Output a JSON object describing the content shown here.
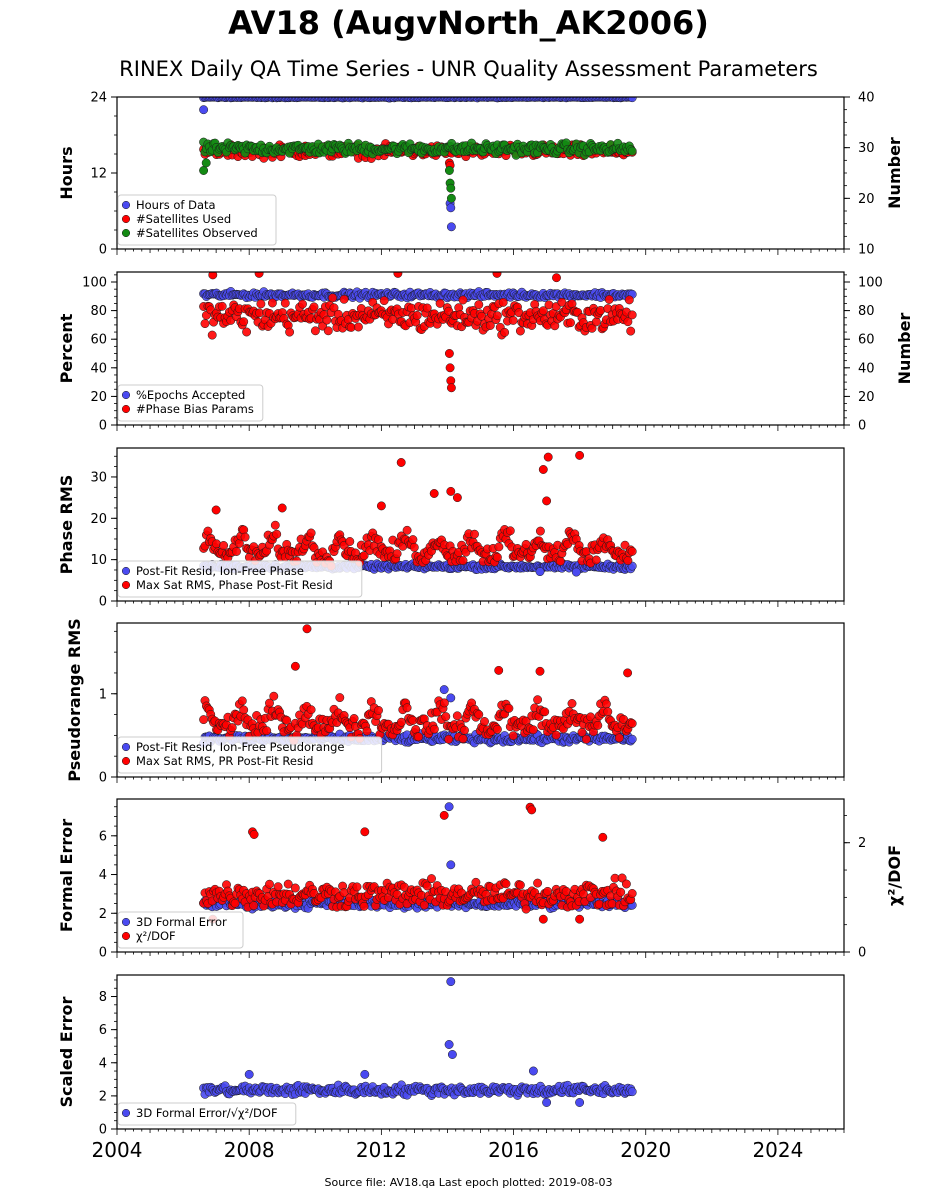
{
  "page": {
    "title": "AV18 (AugvNorth_AK2006)",
    "subtitle": "RINEX Daily QA Time Series - UNR Quality Assessment Parameters",
    "footer": "Source file: AV18.qa Last epoch plotted: 2019-08-03"
  },
  "colors": {
    "blue": "#4a4af0",
    "red": "#ff0000",
    "green": "#138a13",
    "edge": "#1a1a1a"
  },
  "chart_data": [
    {
      "id": "hours",
      "type": "scatter",
      "ylabel": "Hours",
      "ylabel_right": "Number",
      "ylim": [
        0,
        24
      ],
      "ylim_right": [
        10,
        40
      ],
      "yticks": [
        0,
        12,
        24
      ],
      "yticks_right": [
        10,
        20,
        30,
        40
      ],
      "xlim": [
        2004,
        2026
      ],
      "legend_position": "lower-left",
      "series": [
        {
          "name": "Hours of Data",
          "color": "blue",
          "axis": "left",
          "base": 24,
          "noise": 0.1,
          "dips": [
            [
              2006.62,
              22.0
            ],
            [
              2014.08,
              7.2
            ],
            [
              2014.1,
              6.5
            ],
            [
              2014.12,
              3.5
            ]
          ]
        },
        {
          "name": "#Satellites Used",
          "color": "red",
          "axis": "right",
          "base": 29.3,
          "noise": 1.0,
          "dips": [
            [
              2009.7,
              30.3
            ],
            [
              2014.06,
              27.0
            ],
            [
              2014.08,
              26.5
            ]
          ]
        },
        {
          "name": "#Satellites Observed",
          "color": "green",
          "axis": "right",
          "base": 29.8,
          "noise": 0.9,
          "dips": [
            [
              2006.62,
              25.5
            ],
            [
              2006.7,
              27.0
            ],
            [
              2014.06,
              25.5
            ],
            [
              2014.08,
              23.0
            ],
            [
              2014.1,
              22.0
            ],
            [
              2014.12,
              20.0
            ]
          ]
        }
      ]
    },
    {
      "id": "percent",
      "type": "scatter",
      "ylabel": "Percent",
      "ylabel_right": "Number",
      "ylim": [
        0,
        107
      ],
      "ylim_right": [
        0,
        107
      ],
      "yticks": [
        0,
        20,
        40,
        60,
        80,
        100
      ],
      "yticks_right": [
        0,
        20,
        40,
        60,
        80,
        100
      ],
      "xlim": [
        2004,
        2026
      ],
      "legend_position": "lower-left",
      "series": [
        {
          "name": "%Epochs Accepted",
          "color": "blue",
          "axis": "left",
          "base": 91,
          "noise": 1.6,
          "dips": []
        },
        {
          "name": "#Phase Bias Params",
          "color": "red",
          "axis": "right",
          "base": 76,
          "noise": 9,
          "dips": [
            [
              2014.06,
              50
            ],
            [
              2014.08,
              40
            ],
            [
              2014.1,
              31
            ],
            [
              2014.12,
              26
            ],
            [
              2006.9,
              105
            ],
            [
              2008.3,
              106
            ],
            [
              2012.5,
              106
            ],
            [
              2015.5,
              106
            ],
            [
              2017.3,
              103
            ]
          ]
        }
      ]
    },
    {
      "id": "phase-rms",
      "type": "scatter",
      "ylabel": "Phase RMS",
      "ylim": [
        0,
        37
      ],
      "yticks": [
        0,
        10,
        20,
        30
      ],
      "xlim": [
        2004,
        2026
      ],
      "legend_position": "lower-left",
      "series": [
        {
          "name": "Post-Fit Resid, Ion-Free Phase",
          "color": "blue",
          "axis": "left",
          "base": 8.3,
          "noise": 0.5,
          "dips": [
            [
              2017.9,
              7.0
            ],
            [
              2016.8,
              7.1
            ]
          ]
        },
        {
          "name": "Max Sat RMS, Phase Post-Fit Resid",
          "color": "red",
          "axis": "left",
          "base": 11.5,
          "noise": 2.2,
          "dips": [
            [
              2012.6,
              33.5
            ],
            [
              2016.9,
              31.8
            ],
            [
              2017.05,
              34.8
            ],
            [
              2018.0,
              35.2
            ],
            [
              2014.1,
              26.5
            ],
            [
              2013.6,
              26.0
            ],
            [
              2014.3,
              25.0
            ],
            [
              2017.0,
              24.2
            ],
            [
              2012.0,
              23.0
            ],
            [
              2009.0,
              22.5
            ],
            [
              2007.0,
              22.0
            ]
          ]
        }
      ]
    },
    {
      "id": "pseudorange-rms",
      "type": "scatter",
      "ylabel": "Pseudorange RMS",
      "ylim": [
        0,
        1.85
      ],
      "yticks": [
        0,
        1
      ],
      "xlim": [
        2004,
        2026
      ],
      "legend_position": "lower-left",
      "series": [
        {
          "name": "Post-Fit Resid, Ion-Free Pseudorange",
          "color": "blue",
          "axis": "left",
          "base": 0.46,
          "noise": 0.04,
          "dips": [
            [
              2013.9,
              1.05
            ],
            [
              2014.1,
              0.95
            ]
          ]
        },
        {
          "name": "Max Sat RMS, PR Post-Fit Resid",
          "color": "red",
          "axis": "left",
          "base": 0.6,
          "noise": 0.12,
          "dips": [
            [
              2009.75,
              1.78
            ],
            [
              2009.4,
              1.33
            ],
            [
              2015.55,
              1.28
            ],
            [
              2016.8,
              1.27
            ],
            [
              2019.45,
              1.25
            ]
          ]
        }
      ]
    },
    {
      "id": "formal-error",
      "type": "scatter",
      "ylabel": "Formal Error",
      "ylabel_right": "χ²/DOF",
      "ylim": [
        0,
        7.9
      ],
      "ylim_right": [
        0,
        2.8
      ],
      "yticks": [
        0,
        2,
        4,
        6
      ],
      "yticks_right": [
        0,
        2
      ],
      "xlim": [
        2004,
        2026
      ],
      "legend_position": "lower-left",
      "series": [
        {
          "name": "3D Formal Error",
          "color": "blue",
          "axis": "left",
          "base": 2.5,
          "noise": 0.2,
          "dips": [
            [
              2014.05,
              7.5
            ],
            [
              2014.1,
              4.5
            ]
          ]
        },
        {
          "name": "χ²/DOF",
          "color": "red",
          "axis": "right",
          "base": 1.05,
          "noise": 0.2,
          "dips": [
            [
              2016.5,
              2.65
            ],
            [
              2016.55,
              2.6
            ],
            [
              2008.1,
              2.2
            ],
            [
              2008.15,
              2.15
            ],
            [
              2011.5,
              2.2
            ],
            [
              2013.9,
              2.5
            ],
            [
              2018.7,
              2.1
            ],
            [
              2006.9,
              0.6
            ],
            [
              2016.9,
              0.6
            ],
            [
              2018.0,
              0.6
            ]
          ]
        }
      ]
    },
    {
      "id": "scaled-error",
      "type": "scatter",
      "ylabel": "Scaled Error",
      "ylim": [
        0,
        9.3
      ],
      "yticks": [
        0,
        2,
        4,
        6,
        8
      ],
      "xlim": [
        2004,
        2026
      ],
      "xticks": [
        2004,
        2008,
        2012,
        2016,
        2020,
        2024
      ],
      "legend_position": "lower-left",
      "series": [
        {
          "name": "3D Formal Error/√χ²/DOF",
          "color": "blue",
          "axis": "left",
          "base": 2.35,
          "noise": 0.25,
          "dips": [
            [
              2014.1,
              8.9
            ],
            [
              2014.05,
              5.1
            ],
            [
              2014.15,
              4.5
            ],
            [
              2008.0,
              3.3
            ],
            [
              2011.5,
              3.3
            ],
            [
              2016.6,
              3.5
            ],
            [
              2017.0,
              1.6
            ],
            [
              2018.0,
              1.6
            ]
          ]
        }
      ]
    }
  ],
  "data_span": [
    2006.62,
    2019.59
  ],
  "xtick_labels": [
    "2004",
    "2008",
    "2012",
    "2016",
    "2020",
    "2024"
  ]
}
